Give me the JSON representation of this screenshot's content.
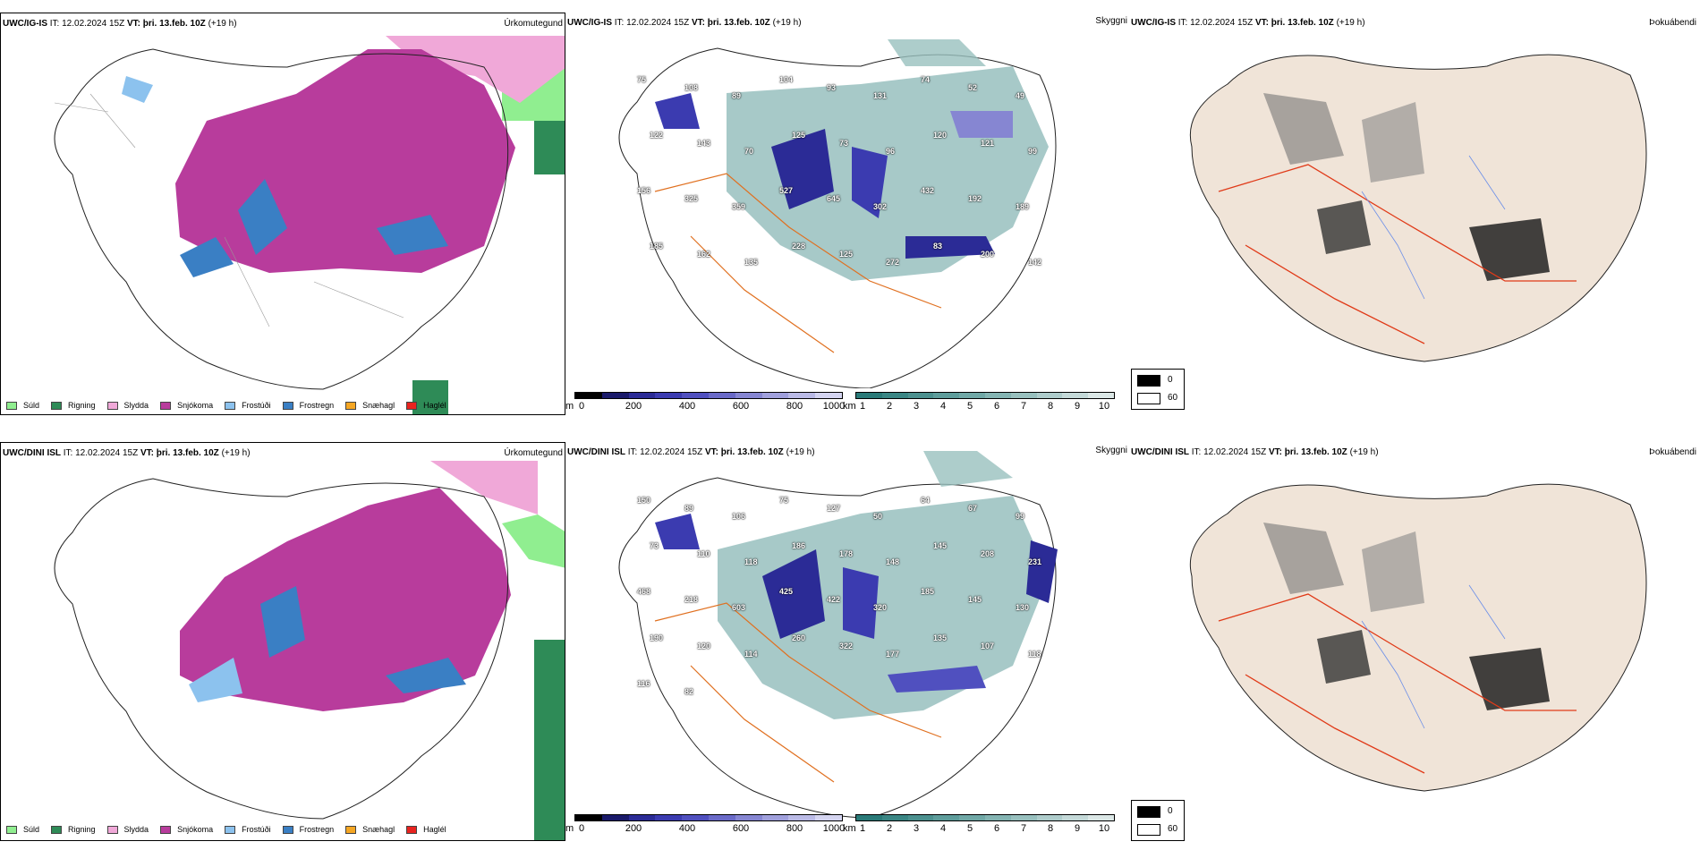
{
  "rows": [
    {
      "model": "UWC/IG-IS",
      "it_label": "IT:",
      "it_value": "12.02.2024 15Z",
      "vt_label": "VT:",
      "vt_value": "þri. 13.feb. 10Z",
      "lead": "(+19 h)"
    },
    {
      "model": "UWC/DINI ISL",
      "it_label": "IT:",
      "it_value": "12.02.2024 15Z",
      "vt_label": "VT:",
      "vt_value": "þri. 13.feb. 10Z",
      "lead": "(+19 h)"
    }
  ],
  "panel_types": {
    "precip": "Úrkomutegund",
    "visibility": "Skyggni",
    "fog": "Þokuábendi"
  },
  "precip_legend": [
    {
      "label": "Súld",
      "color": "#90ee90"
    },
    {
      "label": "Rigning",
      "color": "#2e8b57"
    },
    {
      "label": "Slydda",
      "color": "#f0a8d8"
    },
    {
      "label": "Snjókoma",
      "color": "#b83c9c"
    },
    {
      "label": "Frostúði",
      "color": "#8cc2ee"
    },
    {
      "label": "Frostregn",
      "color": "#3a7fc4"
    },
    {
      "label": "Snæhagl",
      "color": "#f5a623"
    },
    {
      "label": "Haglél",
      "color": "#e8231f"
    }
  ],
  "visibility_scale_m": {
    "unit": "m",
    "ticks": [
      "0",
      "200",
      "400",
      "600",
      "800",
      "1000"
    ],
    "colors": [
      "#000000",
      "#1a1a6a",
      "#2b2b96",
      "#3b3bb0",
      "#5050bf",
      "#6a6ac8",
      "#8686d2",
      "#a0a0dc",
      "#babae6",
      "#d4d4f0"
    ]
  },
  "visibility_scale_km": {
    "unit": "km",
    "ticks": [
      "1",
      "2",
      "3",
      "4",
      "5",
      "6",
      "7",
      "8",
      "9",
      "10"
    ],
    "colors": [
      "#2a7a78",
      "#3a8684",
      "#4c918f",
      "#5e9d9b",
      "#70a8a6",
      "#84b4b2",
      "#98c0be",
      "#aecccb",
      "#c4d9d8",
      "#dbe7e6"
    ]
  },
  "fog_legend": {
    "low": "0",
    "high": "60"
  },
  "visibility_labels": [
    [
      "75",
      "108",
      "89",
      "104",
      "93",
      "131",
      "74",
      "52",
      "49",
      "122",
      "143",
      "70",
      "125",
      "73",
      "96",
      "120",
      "121",
      "99",
      "156",
      "325",
      "359",
      "527",
      "645",
      "302",
      "432",
      "192",
      "189",
      "185",
      "162",
      "135",
      "228",
      "125",
      "272",
      "83",
      "200",
      "142"
    ],
    [
      "150",
      "89",
      "106",
      "75",
      "127",
      "50",
      "64",
      "67",
      "99",
      "73",
      "110",
      "118",
      "186",
      "178",
      "148",
      "145",
      "208",
      "231",
      "468",
      "218",
      "603",
      "425",
      "422",
      "320",
      "185",
      "145",
      "130",
      "190",
      "120",
      "114",
      "260",
      "322",
      "177",
      "135",
      "107",
      "118",
      "116",
      "82"
    ]
  ],
  "colors": {
    "coast": "#222222",
    "roads": "#e07020",
    "fog_roads": "#e03a18",
    "rivers": "#6a8ee8",
    "land_fog": "#f0e4d8"
  }
}
